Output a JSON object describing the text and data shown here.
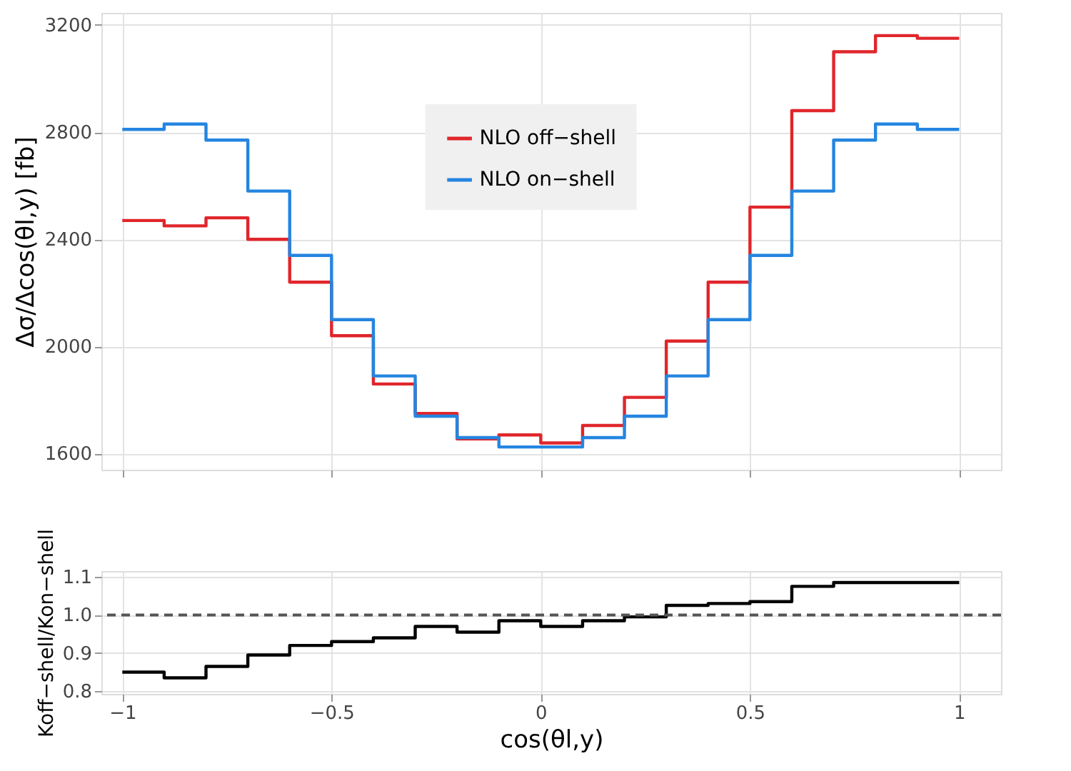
{
  "chart_data": [
    {
      "type": "step",
      "ylabel": "Δσ/Δcos(θl,y) [fb]",
      "x": [
        -1,
        -0.9,
        -0.8,
        -0.7,
        -0.6,
        -0.5,
        -0.4,
        -0.3,
        -0.2,
        -0.1,
        0,
        0.1,
        0.2,
        0.3,
        0.4,
        0.5,
        0.6,
        0.7,
        0.8,
        0.9,
        1
      ],
      "series": [
        {
          "name": "NLO off−shell",
          "color": "#e0262b",
          "values": [
            2470,
            2450,
            2480,
            2400,
            2240,
            2040,
            1860,
            1750,
            1655,
            1670,
            1640,
            1705,
            1810,
            2020,
            2240,
            2520,
            2880,
            3100,
            3160,
            3150,
            3150
          ]
        },
        {
          "name": "NLO on−shell",
          "color": "#2585e0",
          "values": [
            2810,
            2830,
            2770,
            2580,
            2340,
            2100,
            1890,
            1740,
            1660,
            1625,
            1625,
            1660,
            1740,
            1890,
            2100,
            2340,
            2580,
            2770,
            2830,
            2810,
            2810
          ]
        }
      ],
      "xlim": [
        -1.05,
        1.1
      ],
      "ylim": [
        1540,
        3245
      ],
      "xticks": [
        {
          "value": -1,
          "label": null
        },
        {
          "value": -0.5,
          "label": null
        },
        {
          "value": 0,
          "label": null
        },
        {
          "value": 0.5,
          "label": null
        },
        {
          "value": 1,
          "label": null
        }
      ],
      "yticks": [
        1600,
        2000,
        2400,
        2800,
        3200
      ],
      "tick_labels": "y",
      "grid": true,
      "legend": "top",
      "line_style": "solid"
    },
    {
      "type": "step",
      "xlabel": "cos(θl,y)",
      "ylabel": "Koff−shell/Kon−shell",
      "x": [
        -1,
        -0.9,
        -0.8,
        -0.7,
        -0.6,
        -0.5,
        -0.4,
        -0.3,
        -0.2,
        -0.1,
        0,
        0.1,
        0.2,
        0.3,
        0.4,
        0.5,
        0.6,
        0.7,
        0.8,
        0.9,
        1
      ],
      "series": [
        {
          "color": "#000000",
          "values": [
            0.85,
            0.835,
            0.865,
            0.895,
            0.92,
            0.93,
            0.94,
            0.97,
            0.955,
            0.985,
            0.97,
            0.985,
            0.995,
            1.025,
            1.03,
            1.035,
            1.075,
            1.085,
            1.085,
            1.085,
            1.085
          ]
        }
      ],
      "xlim": [
        -1.05,
        1.1
      ],
      "ylim": [
        0.793,
        1.115
      ],
      "xticks": [
        {
          "value": -1,
          "label": "−1"
        },
        {
          "value": -0.5,
          "label": "−0.5"
        },
        0,
        0.5,
        1
      ],
      "yticks": [
        0.8,
        0.9,
        {
          "value": 1,
          "label": "1.0"
        },
        1.1
      ],
      "grid": true,
      "legend": false,
      "line_style": "solid",
      "ref_lines": [
        {
          "axis": "y",
          "value": 1,
          "color": "#555555",
          "line_style": "dashed"
        }
      ]
    }
  ]
}
